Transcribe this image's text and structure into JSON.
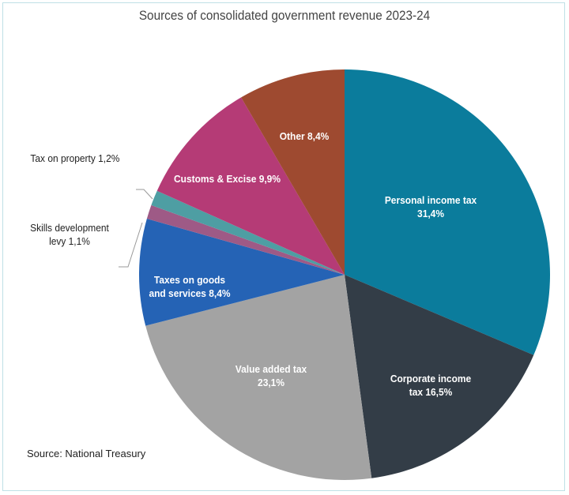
{
  "chart_data": {
    "type": "pie",
    "title": "Sources of consolidated government revenue 2023-24",
    "start": "12 o'clock, clockwise",
    "slices": [
      {
        "label": "Personal income tax",
        "value_label": "31,4%",
        "value": 31.4,
        "color": "#0b7c9c"
      },
      {
        "label": "Corporate income tax",
        "value_label": "16,5%",
        "value": 16.5,
        "color": "#333d47"
      },
      {
        "label": "Value added tax",
        "value_label": "23,1%",
        "value": 23.1,
        "color": "#a3a3a3"
      },
      {
        "label": "Taxes on goods and services",
        "value_label": "8,4%",
        "value": 8.4,
        "color": "#2563b5"
      },
      {
        "label": "Skills development levy",
        "value_label": "1,1%",
        "value": 1.1,
        "color": "#9e5a86"
      },
      {
        "label": "Tax on property",
        "value_label": "1,2%",
        "value": 1.2,
        "color": "#4e9ea3"
      },
      {
        "label": "Customs & Excise",
        "value_label": "9,9%",
        "value": 9.9,
        "color": "#b53b76"
      },
      {
        "label": "Other",
        "value_label": "8,4%",
        "value": 8.4,
        "color": "#9e4a30"
      }
    ]
  },
  "labels": {
    "personal_1": "Personal income tax",
    "personal_2": "31,4%",
    "corporate_1": "Corporate income",
    "corporate_2": "tax 16,5%",
    "vat_1": "Value added tax",
    "vat_2": "23,1%",
    "goods_1": "Taxes on goods",
    "goods_2": "and services 8,4%",
    "skills_1": "Skills development",
    "skills_2": "levy 1,1%",
    "property": "Tax on property 1,2%",
    "customs": "Customs & Excise 9,9%",
    "other": "Other 8,4%"
  },
  "source": "Source: National Treasury"
}
